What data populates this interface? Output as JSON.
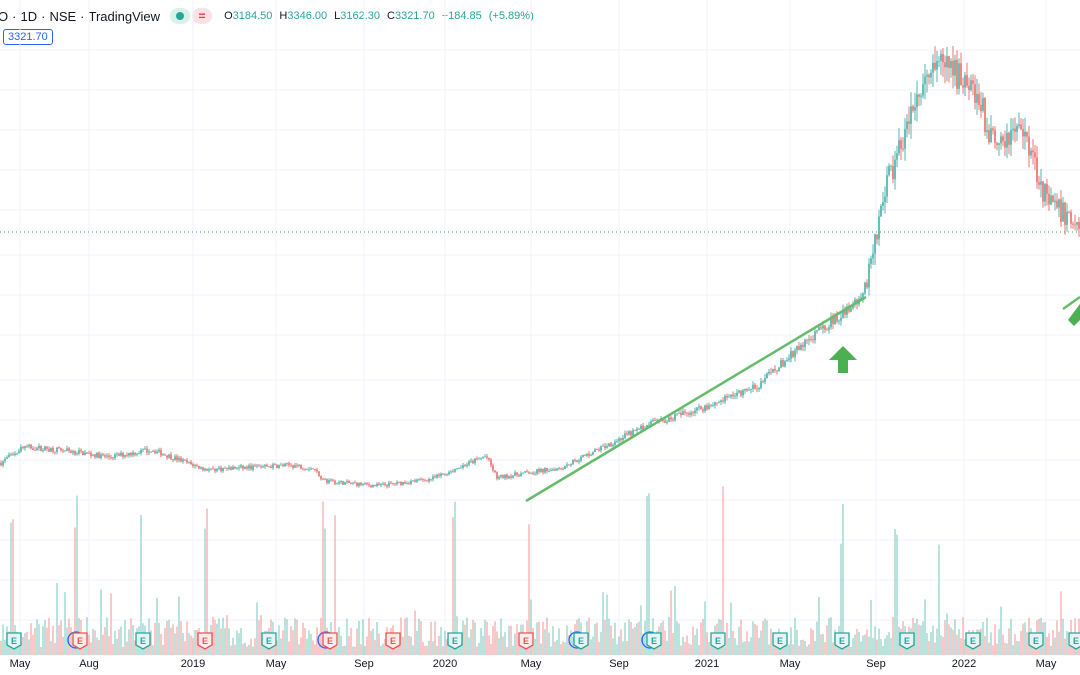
{
  "header": {
    "symbol": "O",
    "interval": "1D",
    "exchange": "NSE",
    "source": "TradingView",
    "open_label": "O",
    "open": "3184.50",
    "high_label": "H",
    "high": "3346.00",
    "low_label": "L",
    "low": "3162.30",
    "close_label": "C",
    "close": "3321.70",
    "change": "+184.85",
    "change_pct": "(+5.89%)"
  },
  "price_badge": "3321.70",
  "colors": {
    "up": "#26a69a",
    "down": "#ef5350",
    "trendline": "#66bb6a",
    "arrow": "#4caf50",
    "grid": "#f0f3fa",
    "current_price_line": "#26a69a"
  },
  "icons": {
    "earnings": "earnings-flag-icon",
    "arrow": "up-arrow-icon"
  },
  "chart_data": {
    "type": "candlestick",
    "title": "",
    "xlabel": "",
    "ylabel": "",
    "grid": true,
    "x_ticks": [
      "May",
      "Aug",
      "2019",
      "May",
      "Sep",
      "2020",
      "May",
      "Sep",
      "2021",
      "May",
      "Sep",
      "2022",
      "May"
    ],
    "price_range": [
      0,
      3500
    ],
    "last_close": 3321.7,
    "trend_profile": [
      {
        "t": 0.0,
        "p": 1120
      },
      {
        "t": 0.02,
        "p": 1260
      },
      {
        "t": 0.06,
        "p": 1230
      },
      {
        "t": 0.1,
        "p": 1170
      },
      {
        "t": 0.14,
        "p": 1235
      },
      {
        "t": 0.19,
        "p": 1060
      },
      {
        "t": 0.27,
        "p": 1100
      },
      {
        "t": 0.29,
        "p": 1070
      },
      {
        "t": 0.3,
        "p": 960
      },
      {
        "t": 0.35,
        "p": 920
      },
      {
        "t": 0.4,
        "p": 980
      },
      {
        "t": 0.45,
        "p": 1180
      },
      {
        "t": 0.46,
        "p": 990
      },
      {
        "t": 0.52,
        "p": 1080
      },
      {
        "t": 0.6,
        "p": 1450
      },
      {
        "t": 0.65,
        "p": 1600
      },
      {
        "t": 0.7,
        "p": 1780
      },
      {
        "t": 0.74,
        "p": 2120
      },
      {
        "t": 0.8,
        "p": 2580
      },
      {
        "t": 0.82,
        "p": 3500
      },
      {
        "t": 0.85,
        "p": 4300
      },
      {
        "t": 0.87,
        "p": 4580
      },
      {
        "t": 0.9,
        "p": 4480
      },
      {
        "t": 0.92,
        "p": 3940
      },
      {
        "t": 0.95,
        "p": 4050
      },
      {
        "t": 0.97,
        "p": 3400
      },
      {
        "t": 1.0,
        "p": 3200
      }
    ],
    "volume_spikes": [
      0.01,
      0.07,
      0.13,
      0.19,
      0.3,
      0.31,
      0.42,
      0.49,
      0.6,
      0.67,
      0.78,
      0.83,
      0.87
    ]
  }
}
